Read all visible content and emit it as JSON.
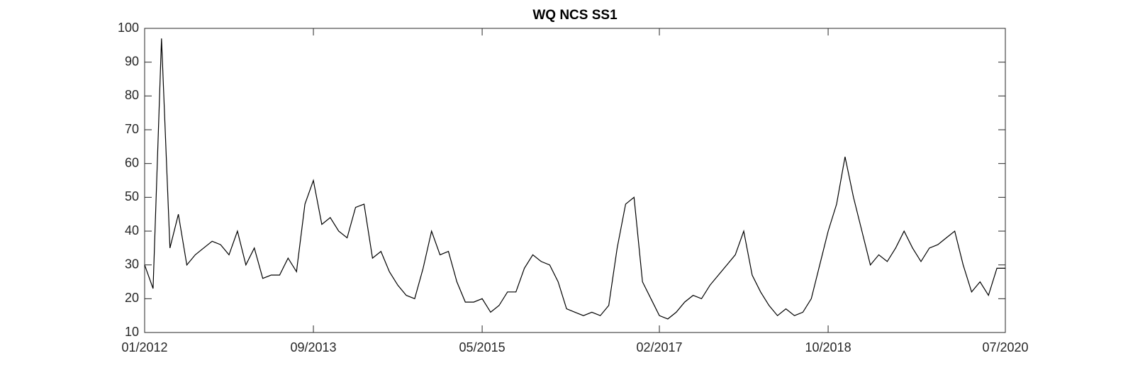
{
  "chart_data": {
    "type": "line",
    "title": "WQ NCS SS1",
    "x": [
      "01/2012",
      "02/2012",
      "03/2012",
      "04/2012",
      "05/2012",
      "06/2012",
      "07/2012",
      "08/2012",
      "09/2012",
      "10/2012",
      "11/2012",
      "12/2012",
      "01/2013",
      "02/2013",
      "03/2013",
      "04/2013",
      "05/2013",
      "06/2013",
      "07/2013",
      "08/2013",
      "09/2013",
      "10/2013",
      "11/2013",
      "12/2013",
      "01/2014",
      "02/2014",
      "03/2014",
      "04/2014",
      "05/2014",
      "06/2014",
      "07/2014",
      "08/2014",
      "09/2014",
      "10/2014",
      "11/2014",
      "12/2014",
      "01/2015",
      "02/2015",
      "03/2015",
      "04/2015",
      "05/2015",
      "06/2015",
      "07/2015",
      "08/2015",
      "09/2015",
      "10/2015",
      "11/2015",
      "12/2015",
      "01/2016",
      "02/2016",
      "03/2016",
      "04/2016",
      "05/2016",
      "06/2016",
      "07/2016",
      "08/2016",
      "09/2016",
      "10/2016",
      "11/2016",
      "12/2016",
      "01/2017",
      "02/2017",
      "03/2017",
      "04/2017",
      "05/2017",
      "06/2017",
      "07/2017",
      "08/2017",
      "09/2017",
      "10/2017",
      "11/2017",
      "12/2017",
      "01/2018",
      "02/2018",
      "03/2018",
      "04/2018",
      "05/2018",
      "06/2018",
      "07/2018",
      "08/2018",
      "09/2018",
      "10/2018",
      "11/2018",
      "12/2018",
      "01/2019",
      "02/2019",
      "03/2019",
      "04/2019",
      "05/2019",
      "06/2019",
      "07/2019",
      "08/2019",
      "09/2019",
      "10/2019",
      "11/2019",
      "12/2019",
      "01/2020",
      "02/2020",
      "03/2020",
      "04/2020",
      "05/2020",
      "06/2020",
      "07/2020"
    ],
    "series": [
      {
        "color": "#000000",
        "values": [
          30,
          23,
          97,
          35,
          45,
          30,
          33,
          35,
          37,
          36,
          33,
          40,
          30,
          35,
          26,
          27,
          27,
          32,
          28,
          48,
          55,
          42,
          44,
          40,
          38,
          47,
          48,
          32,
          34,
          28,
          24,
          21,
          20,
          29,
          40,
          33,
          34,
          25,
          19,
          19,
          20,
          16,
          18,
          22,
          22,
          29,
          33,
          31,
          30,
          25,
          17,
          16,
          15,
          16,
          15,
          18,
          35,
          48,
          50,
          25,
          20,
          15,
          14,
          16,
          19,
          21,
          20,
          24,
          27,
          30,
          33,
          40,
          27,
          22,
          18,
          15,
          17,
          15,
          16,
          20,
          30,
          40,
          48,
          62,
          50,
          40,
          30,
          33,
          31,
          35,
          40,
          35,
          31,
          35,
          36,
          38,
          40,
          30,
          22,
          25,
          21,
          29,
          29
        ]
      }
    ],
    "xlim": [
      "01/2012",
      "07/2020"
    ],
    "xticks": [
      "01/2012",
      "09/2013",
      "05/2015",
      "02/2017",
      "10/2018",
      "07/2020"
    ],
    "ylim": [
      10,
      100
    ],
    "yticks": [
      10,
      20,
      30,
      40,
      50,
      60,
      70,
      80,
      90,
      100
    ],
    "grid": false
  }
}
